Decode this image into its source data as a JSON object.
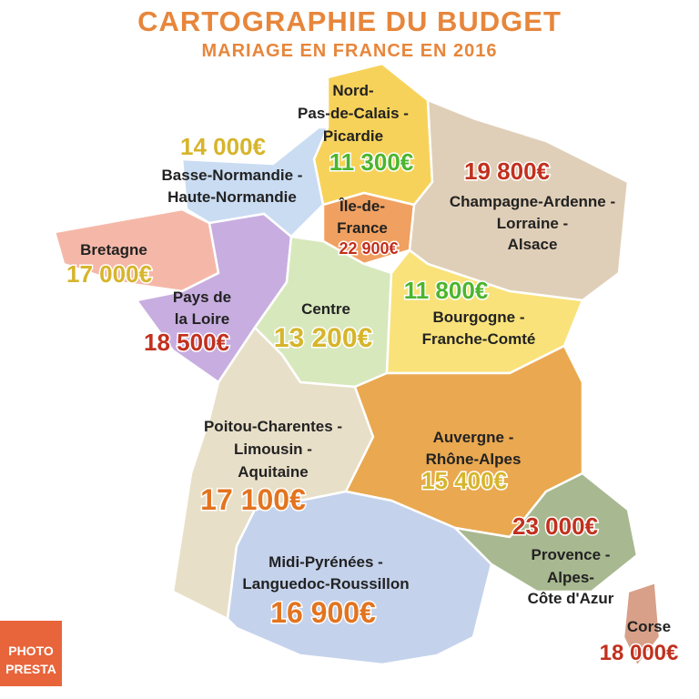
{
  "header": {
    "title": "CARTOGRAPHIE DU BUDGET",
    "subtitle": "MARIAGE EN FRANCE EN 2016"
  },
  "regions": [
    {
      "name_lines": [
        "Nord-",
        "Pas-de-Calais -",
        "Picardie"
      ],
      "budget": "11 300€"
    },
    {
      "name_lines": [
        "Basse-Normandie -",
        "Haute-Normandie"
      ],
      "budget": "14 000€"
    },
    {
      "name_lines": [
        "Île-de-",
        "France"
      ],
      "budget": "22 900€"
    },
    {
      "name_lines": [
        "Champagne-Ardenne -",
        "Lorraine -",
        "Alsace"
      ],
      "budget": "19 800€"
    },
    {
      "name_lines": [
        "Bretagne"
      ],
      "budget": "17 000€"
    },
    {
      "name_lines": [
        "Pays de",
        "la Loire"
      ],
      "budget": "18 500€"
    },
    {
      "name_lines": [
        "Centre"
      ],
      "budget": "13 200€"
    },
    {
      "name_lines": [
        "Bourgogne -",
        "Franche-Comté"
      ],
      "budget": "11 800€"
    },
    {
      "name_lines": [
        "Auvergne -",
        "Rhône-Alpes"
      ],
      "budget": "15 400€"
    },
    {
      "name_lines": [
        "Poitou-Charentes -",
        "Limousin -",
        "Aquitaine"
      ],
      "budget": "17 100€"
    },
    {
      "name_lines": [
        "Provence -",
        "Alpes-",
        "Côte d'Azur"
      ],
      "budget": "23 000€"
    },
    {
      "name_lines": [
        "Midi-Pyrénées -",
        "Languedoc-Roussillon"
      ],
      "budget": "16 900€"
    },
    {
      "name_lines": [
        "Corse"
      ],
      "budget": "18 000€"
    }
  ],
  "logo": {
    "lines": [
      "PHOTO",
      "PRESTA"
    ]
  }
}
